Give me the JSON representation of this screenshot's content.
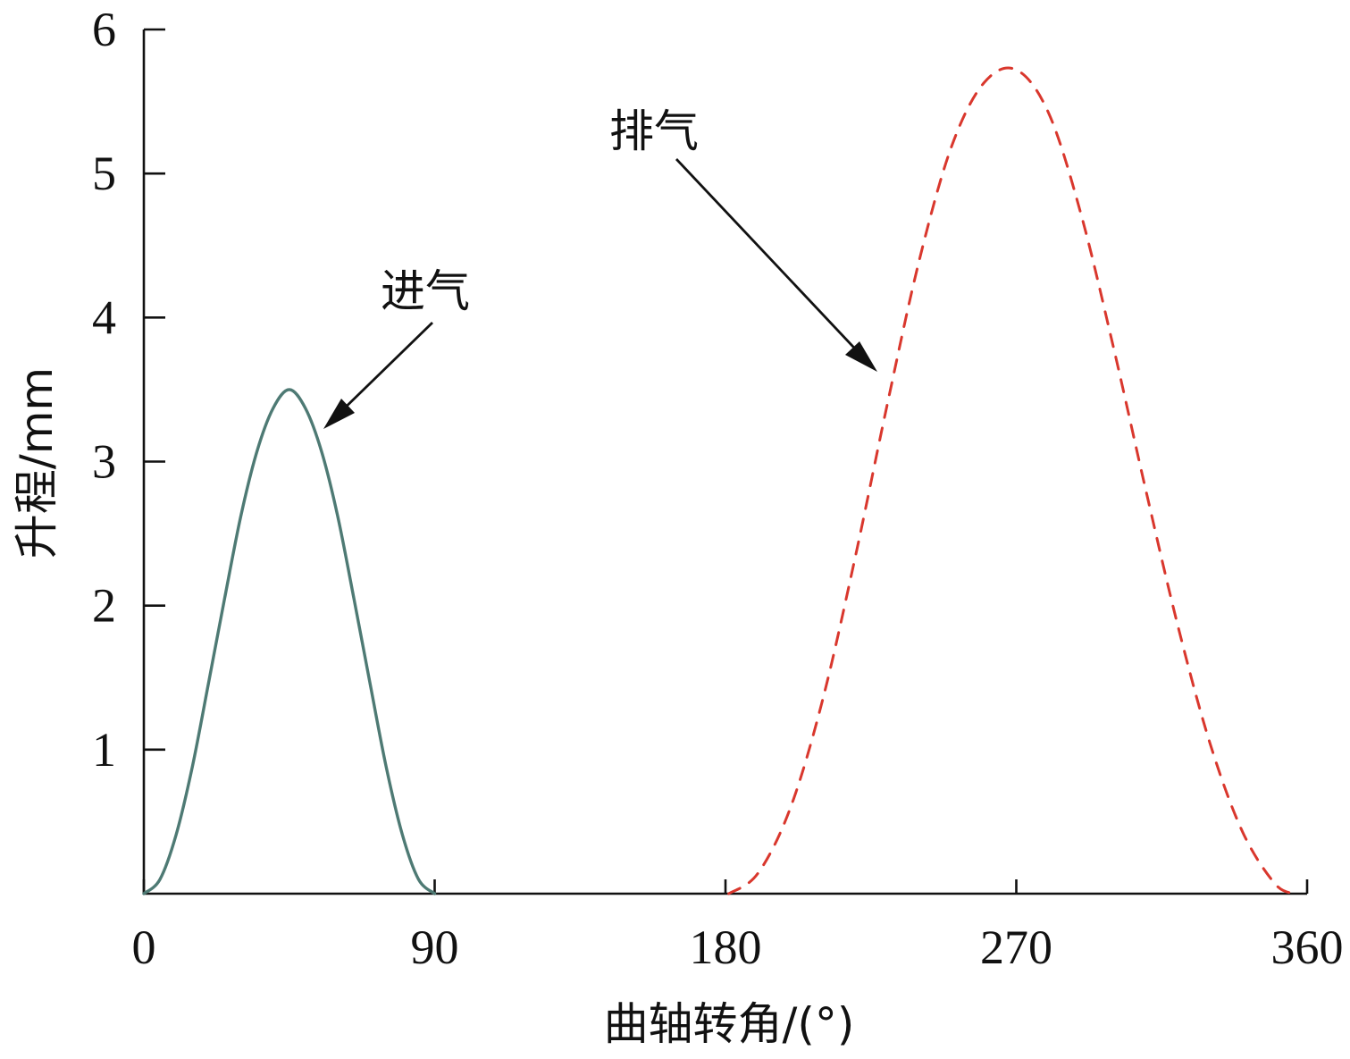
{
  "chart_data": {
    "type": "line",
    "title": "",
    "xlabel": "曲轴转角/(°)",
    "ylabel": "升程/mm",
    "xlim": [
      0,
      360
    ],
    "ylim": [
      0,
      6
    ],
    "xticks": [
      "0",
      "90",
      "180",
      "270",
      "360"
    ],
    "yticks": [
      "1",
      "2",
      "3",
      "4",
      "5",
      "6"
    ],
    "grid": false,
    "legend": "none",
    "series": [
      {
        "name": "进气",
        "style": "solid",
        "color": "#4e7a74",
        "x": [
          0,
          5,
          10,
          15,
          20,
          25,
          30,
          35,
          40,
          45,
          50,
          55,
          60,
          65,
          70,
          75,
          80,
          85,
          90
        ],
        "y": [
          0,
          0.1,
          0.41,
          0.88,
          1.46,
          2.05,
          2.62,
          3.07,
          3.37,
          3.5,
          3.37,
          3.07,
          2.62,
          2.05,
          1.46,
          0.88,
          0.41,
          0.1,
          0
        ]
      },
      {
        "name": "排气",
        "style": "dashed",
        "color": "#d9372d",
        "x": [
          181,
          190,
          200,
          210,
          220,
          230,
          240,
          250,
          260,
          270,
          280,
          290,
          300,
          310,
          320,
          330,
          340,
          350,
          356
        ],
        "y": [
          0,
          0.14,
          0.59,
          1.34,
          2.32,
          3.39,
          4.4,
          5.19,
          5.63,
          5.72,
          5.42,
          4.72,
          3.8,
          2.81,
          1.86,
          1.04,
          0.43,
          0.07,
          0
        ]
      }
    ],
    "annotations": [
      {
        "text": "进气",
        "target": [
          55,
          3.2
        ]
      },
      {
        "text": "排气",
        "target": [
          228,
          3.6
        ]
      }
    ]
  }
}
